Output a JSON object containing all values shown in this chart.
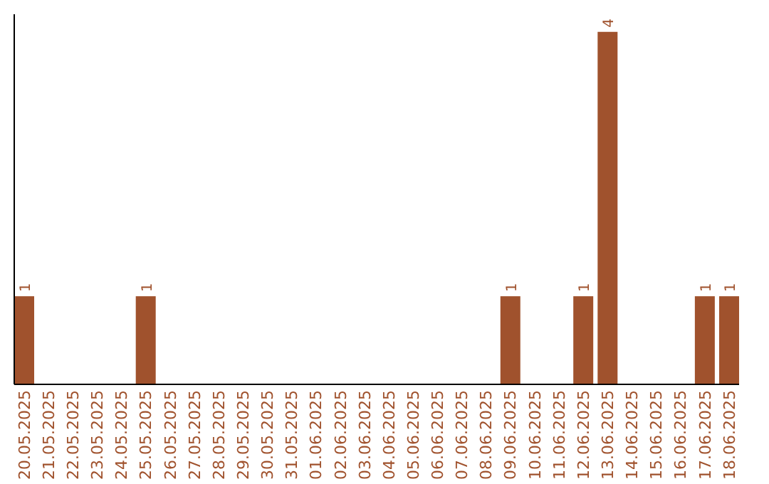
{
  "chart_data": {
    "type": "bar",
    "categories": [
      "20.05.2025",
      "21.05.2025",
      "22.05.2025",
      "23.05.2025",
      "24.05.2025",
      "25.05.2025",
      "26.05.2025",
      "27.05.2025",
      "28.05.2025",
      "29.05.2025",
      "30.05.2025",
      "31.05.2025",
      "01.06.2025",
      "02.06.2025",
      "03.06.2025",
      "04.06.2025",
      "05.06.2025",
      "06.06.2025",
      "07.06.2025",
      "08.06.2025",
      "09.06.2025",
      "10.06.2025",
      "11.06.2025",
      "12.06.2025",
      "13.06.2025",
      "14.06.2025",
      "15.06.2025",
      "16.06.2025",
      "17.06.2025",
      "18.06.2025"
    ],
    "values": [
      1,
      0,
      0,
      0,
      0,
      1,
      0,
      0,
      0,
      0,
      0,
      0,
      0,
      0,
      0,
      0,
      0,
      0,
      0,
      0,
      1,
      0,
      0,
      1,
      4,
      0,
      0,
      0,
      1,
      1
    ],
    "value_labels": [
      "1",
      null,
      null,
      null,
      null,
      "1",
      null,
      null,
      null,
      null,
      null,
      null,
      null,
      null,
      null,
      null,
      null,
      null,
      null,
      null,
      "1",
      null,
      null,
      "1",
      "4",
      null,
      null,
      null,
      "1",
      "1"
    ],
    "color": "#a0522d",
    "ylim": [
      0,
      4.2
    ],
    "tick_labels": "x"
  }
}
